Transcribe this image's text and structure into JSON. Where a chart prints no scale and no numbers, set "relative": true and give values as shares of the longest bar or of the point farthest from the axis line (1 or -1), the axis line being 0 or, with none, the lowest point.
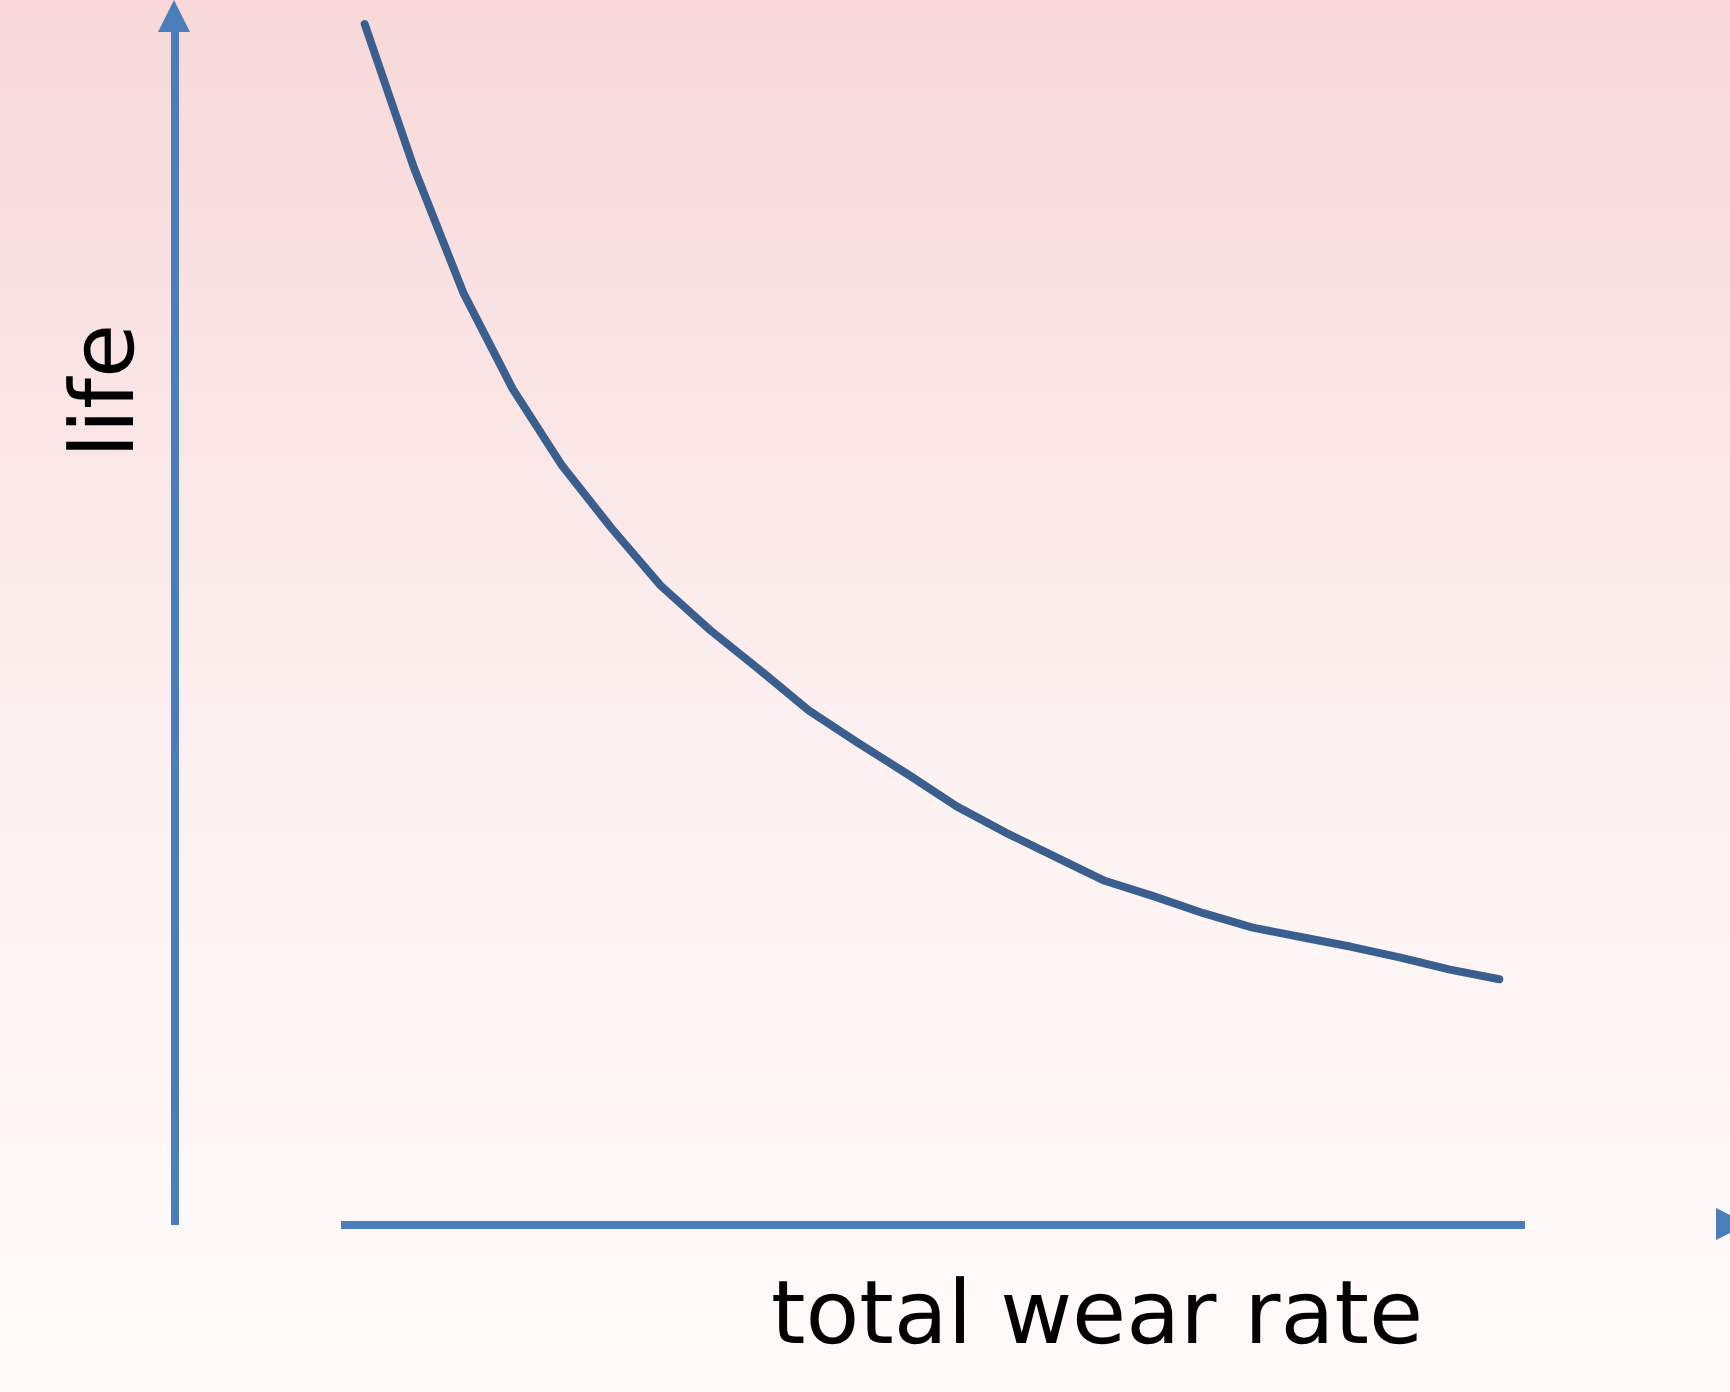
{
  "chart_data": {
    "type": "line",
    "relative": true,
    "xlabel": "total wear rate",
    "ylabel": "life",
    "categories": [
      null,
      null,
      null,
      null,
      null,
      null,
      null,
      null,
      null,
      null,
      null,
      null,
      null,
      null,
      null,
      null,
      null,
      null,
      null,
      null,
      null,
      null,
      null,
      null
    ],
    "series": [
      {
        "color": "#3a5f8f",
        "values": [
          1,
          0.88,
          0.776,
          0.696,
          0.632,
          0.58,
          0.532,
          0.495,
          0.462,
          0.428,
          0.401,
          0.375,
          0.348,
          0.326,
          0.306,
          0.286,
          0.273,
          0.259,
          0.247,
          0.239,
          0.231,
          0.222,
          0.212,
          0.204
        ]
      }
    ],
    "line_style": "solid"
  }
}
